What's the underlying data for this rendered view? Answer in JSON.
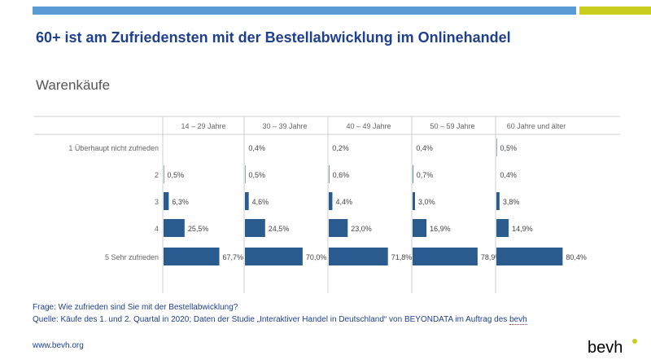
{
  "header": {
    "title": "60+ ist am Zufriedensten mit der Bestellabwicklung im Onlinehandel",
    "subtitle": "Warenkäufe",
    "colors": {
      "bar_blue": "#5b9bd5",
      "bar_lime": "#c9cd1d",
      "title": "#1f3f8f"
    }
  },
  "chart_data": {
    "type": "bar",
    "orientation": "horizontal",
    "categories": [
      "1 Überhaupt nicht zufrieden",
      "2",
      "3",
      "4",
      "5 Sehr zufrieden"
    ],
    "series": [
      {
        "name": "14 – 29 Jahre",
        "values": [
          null,
          0.5,
          6.3,
          25.5,
          67.7
        ],
        "labels": [
          "",
          "0,5%",
          "6,3%",
          "25,5%",
          "67,7%"
        ]
      },
      {
        "name": "30 – 39 Jahre",
        "values": [
          0.4,
          0.5,
          4.6,
          24.5,
          70.0
        ],
        "labels": [
          "0,4%",
          "0,5%",
          "4,6%",
          "24,5%",
          "70,0%"
        ]
      },
      {
        "name": "40 – 49 Jahre",
        "values": [
          0.2,
          0.6,
          4.4,
          23.0,
          71.8
        ],
        "labels": [
          "0,2%",
          "0,6%",
          "4,4%",
          "23,0%",
          "71,8%"
        ]
      },
      {
        "name": "50 – 59 Jahre",
        "values": [
          0.4,
          0.7,
          3.0,
          16.9,
          78.9
        ],
        "labels": [
          "0,4%",
          "0,7%",
          "3,0%",
          "16,9%",
          "78,9%"
        ]
      },
      {
        "name": "60 Jahre und älter",
        "values": [
          0.5,
          0.4,
          3.8,
          14.9,
          80.4
        ],
        "labels": [
          "0,5%",
          "0,4%",
          "3,8%",
          "14,9%",
          "80,4%"
        ]
      }
    ],
    "bar_color": "#2a5b8e",
    "xlim": [
      0,
      100
    ],
    "grid": false
  },
  "footer": {
    "question": "Frage: Wie zufrieden sind Sie mit der Bestellabwicklung?",
    "source_prefix": "Quelle: Käufe des 1. und 2. Quartal in 2020; Daten der Studie „Interaktiver Handel in Deutschland“ von BEYONDATA im Auftrag des ",
    "source_suffix": "bevh",
    "url": "www.bevh.org",
    "logo": "bevh"
  }
}
